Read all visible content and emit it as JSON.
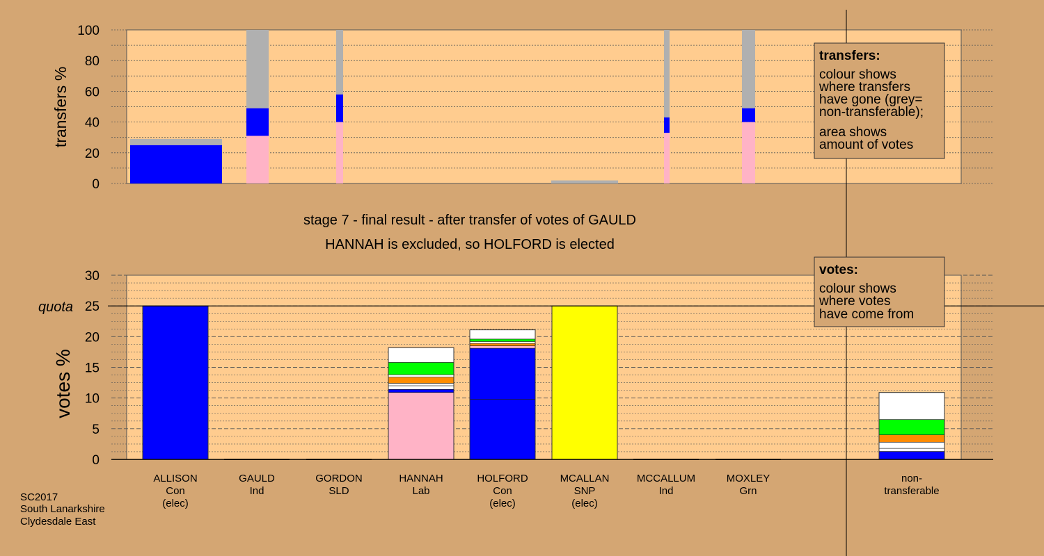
{
  "colors": {
    "background": "#d4a673",
    "panel": "#ffcc8f",
    "Con": "#0000ff",
    "Lab": "#ffb3c6",
    "SNP": "#ffff00",
    "Grn": "#00ff00",
    "Ind": "#ff8c00",
    "grey": "#b0b0b0",
    "white": "#ffffff"
  },
  "top_chart": {
    "ylabel": "transfers %",
    "y_ticks": [
      "0",
      "20",
      "40",
      "60",
      "80",
      "100"
    ]
  },
  "bottom_chart": {
    "ylabel": "votes %",
    "y_ticks": [
      "0",
      "5",
      "10",
      "15",
      "20",
      "25",
      "30"
    ],
    "quota_label": "quota"
  },
  "stage_title": "stage 7 - final result - after transfer of votes of GAULD",
  "stage_subtitle": "HANNAH is excluded, so HOLFORD is elected",
  "legend_transfers": {
    "title": "transfers:",
    "lines1": [
      "colour shows",
      "where transfers",
      "have gone (grey=",
      "non-transferable);"
    ],
    "lines2": [
      "area shows",
      "amount of votes"
    ]
  },
  "legend_votes": {
    "title": "votes:",
    "lines": [
      "colour shows",
      "where votes",
      "have come from"
    ]
  },
  "candidates": [
    {
      "name": "ALLISON",
      "party": "Con",
      "status": "(elec)"
    },
    {
      "name": "GAULD",
      "party": "Ind",
      "status": ""
    },
    {
      "name": "GORDON",
      "party": "SLD",
      "status": ""
    },
    {
      "name": "HANNAH",
      "party": "Lab",
      "status": ""
    },
    {
      "name": "HOLFORD",
      "party": "Con",
      "status": "(elec)"
    },
    {
      "name": "MCALLAN",
      "party": "SNP",
      "status": "(elec)"
    },
    {
      "name": "MCCALLUM",
      "party": "Ind",
      "status": ""
    },
    {
      "name": "MOXLEY",
      "party": "Grn",
      "status": ""
    }
  ],
  "nontransferable_label": [
    "non-",
    "transferable"
  ],
  "footer": [
    "SC2017",
    "South Lanarkshire",
    "Clydesdale East"
  ],
  "chart_data": [
    {
      "type": "bar",
      "ylabel": "transfers %",
      "ylim": [
        0,
        100
      ],
      "categories": [
        "ALLISON",
        "GAULD",
        "GORDON",
        "HANNAH",
        "HOLFORD",
        "MCALLAN",
        "MCCALLUM",
        "MOXLEY"
      ],
      "transfers": [
        {
          "candidate": "ALLISON",
          "segments": [
            {
              "color": "Con",
              "value": 25
            },
            {
              "color": "grey",
              "value": 4
            }
          ]
        },
        {
          "candidate": "GAULD",
          "segments": [
            {
              "color": "Lab",
              "value": 31
            },
            {
              "color": "Con",
              "value": 18
            },
            {
              "color": "grey",
              "value": 51
            }
          ]
        },
        {
          "candidate": "GORDON",
          "segments": [
            {
              "color": "Lab",
              "value": 40
            },
            {
              "color": "Con",
              "value": 18
            },
            {
              "color": "grey",
              "value": 42
            }
          ]
        },
        {
          "candidate": "MCALLAN",
          "segments": [
            {
              "color": "grey",
              "value": 2
            }
          ]
        },
        {
          "candidate": "MCCALLUM",
          "segments": [
            {
              "color": "Lab",
              "value": 33
            },
            {
              "color": "Con",
              "value": 10
            },
            {
              "color": "grey",
              "value": 57
            }
          ]
        },
        {
          "candidate": "MOXLEY",
          "segments": [
            {
              "color": "Lab",
              "value": 40
            },
            {
              "color": "Con",
              "value": 9
            },
            {
              "color": "grey",
              "value": 51
            }
          ]
        }
      ]
    },
    {
      "type": "bar",
      "ylabel": "votes %",
      "ylim": [
        0,
        30
      ],
      "quota": 25,
      "categories": [
        "ALLISON",
        "GAULD",
        "GORDON",
        "HANNAH",
        "HOLFORD",
        "MCALLAN",
        "MCCALLUM",
        "MOXLEY",
        "non-transferable"
      ],
      "votes": [
        {
          "candidate": "ALLISON",
          "segments": [
            {
              "color": "Con",
              "value": 25
            }
          ]
        },
        {
          "candidate": "GAULD",
          "segments": []
        },
        {
          "candidate": "GORDON",
          "segments": []
        },
        {
          "candidate": "HANNAH",
          "segments": [
            {
              "color": "Lab",
              "value": 10.9
            },
            {
              "color": "Con",
              "value": 0.5
            },
            {
              "color": "white",
              "value": 0.6
            },
            {
              "color": "white",
              "value": 0.4
            },
            {
              "color": "Ind",
              "value": 1
            },
            {
              "color": "white",
              "value": 0.4
            },
            {
              "color": "Grn",
              "value": 2
            },
            {
              "color": "white",
              "value": 2.4
            }
          ]
        },
        {
          "candidate": "HOLFORD",
          "segments": [
            {
              "color": "Con",
              "value": 9.8
            },
            {
              "color": "Con",
              "value": 8.3
            },
            {
              "color": "Lab",
              "value": 0.4
            },
            {
              "color": "Ind",
              "value": 0.4
            },
            {
              "color": "white",
              "value": 0.3
            },
            {
              "color": "Grn",
              "value": 0.4
            },
            {
              "color": "white",
              "value": 1.5
            }
          ]
        },
        {
          "candidate": "MCALLAN",
          "segments": [
            {
              "color": "SNP",
              "value": 25
            }
          ]
        },
        {
          "candidate": "MCCALLUM",
          "segments": []
        },
        {
          "candidate": "MOXLEY",
          "segments": []
        },
        {
          "candidate": "non-transferable",
          "segments": [
            {
              "color": "Con",
              "value": 1.3
            },
            {
              "color": "white",
              "value": 0.5
            },
            {
              "color": "white",
              "value": 1
            },
            {
              "color": "Ind",
              "value": 1.2
            },
            {
              "color": "Grn",
              "value": 2.5
            },
            {
              "color": "white",
              "value": 4.4
            }
          ]
        }
      ]
    }
  ]
}
